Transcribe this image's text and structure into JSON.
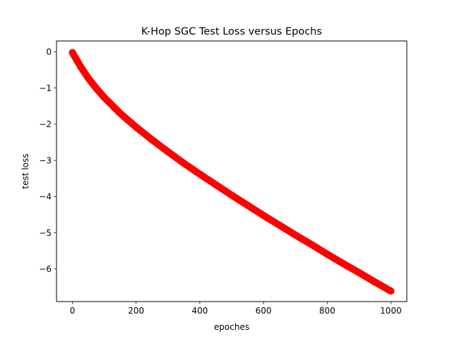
{
  "chart_data": {
    "type": "scatter",
    "title": "K-Hop SGC Test Loss versus Epochs",
    "xlabel": "epoches",
    "ylabel": "test loss",
    "xlim": [
      -50,
      1050
    ],
    "ylim": [
      -6.9,
      0.3
    ],
    "xticks": [
      0,
      200,
      400,
      600,
      800,
      1000
    ],
    "yticks": [
      0,
      -1,
      -2,
      -3,
      -4,
      -5,
      -6
    ],
    "grid": false,
    "legend": "none",
    "series": [
      {
        "color": "#ff0000",
        "x": [
          0,
          5,
          10,
          25,
          50,
          75,
          100,
          150,
          200,
          250,
          300,
          350,
          400,
          450,
          500,
          550,
          600,
          650,
          700,
          750,
          800,
          850,
          900,
          950,
          1000
        ],
        "y": [
          -0.02,
          -0.1,
          -0.17,
          -0.4,
          -0.73,
          -1.01,
          -1.26,
          -1.7,
          -2.08,
          -2.43,
          -2.76,
          -3.08,
          -3.38,
          -3.67,
          -3.96,
          -4.24,
          -4.52,
          -4.79,
          -5.06,
          -5.32,
          -5.59,
          -5.85,
          -6.1,
          -6.36,
          -6.61
        ]
      }
    ]
  }
}
